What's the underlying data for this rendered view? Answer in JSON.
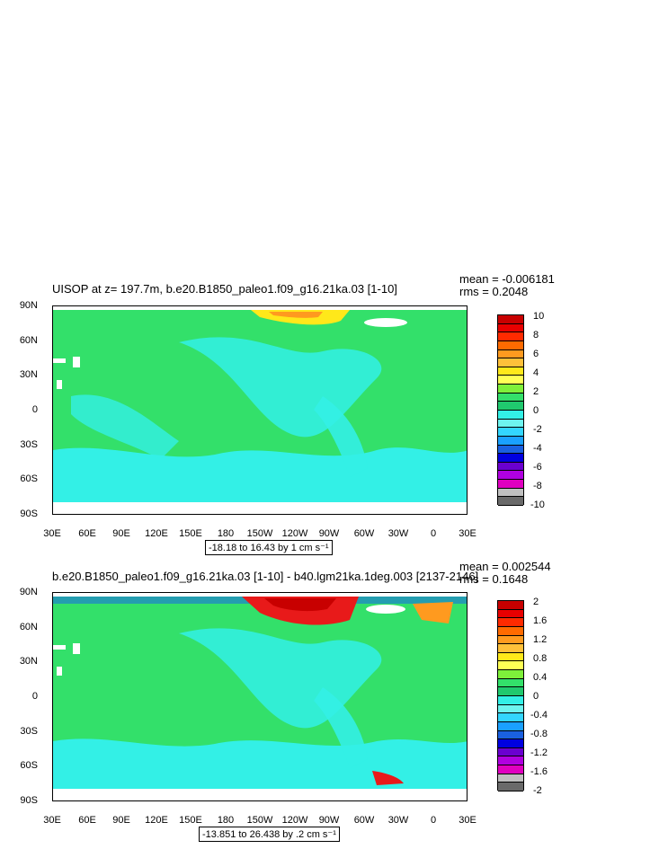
{
  "colors": {
    "green": "#33e06a",
    "cyan": "#33f0e6",
    "lightcyan": "#6ef5ef",
    "blue": "#1a70e0",
    "red": "#e81a1a",
    "orange": "#ff9a1f",
    "yellow": "#ffe81a",
    "white": "#ffffff",
    "gray": "#777777"
  },
  "axes": {
    "y_labels": [
      "90N",
      "60N",
      "30N",
      "0",
      "30S",
      "60S",
      "90S"
    ],
    "x_labels": [
      "30E",
      "60E",
      "90E",
      "120E",
      "150E",
      "180",
      "150W",
      "120W",
      "90W",
      "60W",
      "30W",
      "0",
      "30E"
    ]
  },
  "panels": [
    {
      "title": "UISOP at z= 197.7m, b.e20.B1850_paleo1.f09_g16.21ka.03 [1-10]",
      "mean": "mean = -0.006181",
      "rms": "rms = 0.2048",
      "range": "-18.18 to 16.43 by 1 cm s⁻¹",
      "colorbar_labels": [
        "10",
        "8",
        "6",
        "4",
        "2",
        "0",
        "-2",
        "-4",
        "-6",
        "-8",
        "-10"
      ],
      "colorbar_colors": [
        "#c80000",
        "#e80000",
        "#ff2a00",
        "#ff6a00",
        "#ff9a1f",
        "#ffc03a",
        "#ffe81a",
        "#ffff55",
        "#7ef03a",
        "#33e06a",
        "#20c96e",
        "#33f0e6",
        "#6ef5ef",
        "#33d6ff",
        "#1aa0ff",
        "#1a60e0",
        "#0000e0",
        "#6a00d0",
        "#b000e0",
        "#e000c0",
        "#c0c0c0",
        "#6a6a6a"
      ]
    },
    {
      "title": "b.e20.B1850_paleo1.f09_g16.21ka.03 [1-10] - b40.lgm21ka.1deg.003 [2137-2146]",
      "mean": "mean = 0.002544",
      "rms": "rms = 0.1648",
      "range": "-13.851 to 26.438 by .2 cm s⁻¹",
      "colorbar_labels": [
        "2",
        "1.6",
        "1.2",
        "0.8",
        "0.4",
        "0",
        "-0.4",
        "-0.8",
        "-1.2",
        "-1.6",
        "-2"
      ],
      "colorbar_colors": [
        "#c80000",
        "#e80000",
        "#ff2a00",
        "#ff6a00",
        "#ff9a1f",
        "#ffc03a",
        "#ffe81a",
        "#ffff55",
        "#7ef03a",
        "#33e06a",
        "#20c96e",
        "#33f0e6",
        "#6ef5ef",
        "#33d6ff",
        "#1aa0ff",
        "#1a60e0",
        "#0000e0",
        "#6a00d0",
        "#b000e0",
        "#e000c0",
        "#c0c0c0",
        "#6a6a6a"
      ]
    }
  ]
}
